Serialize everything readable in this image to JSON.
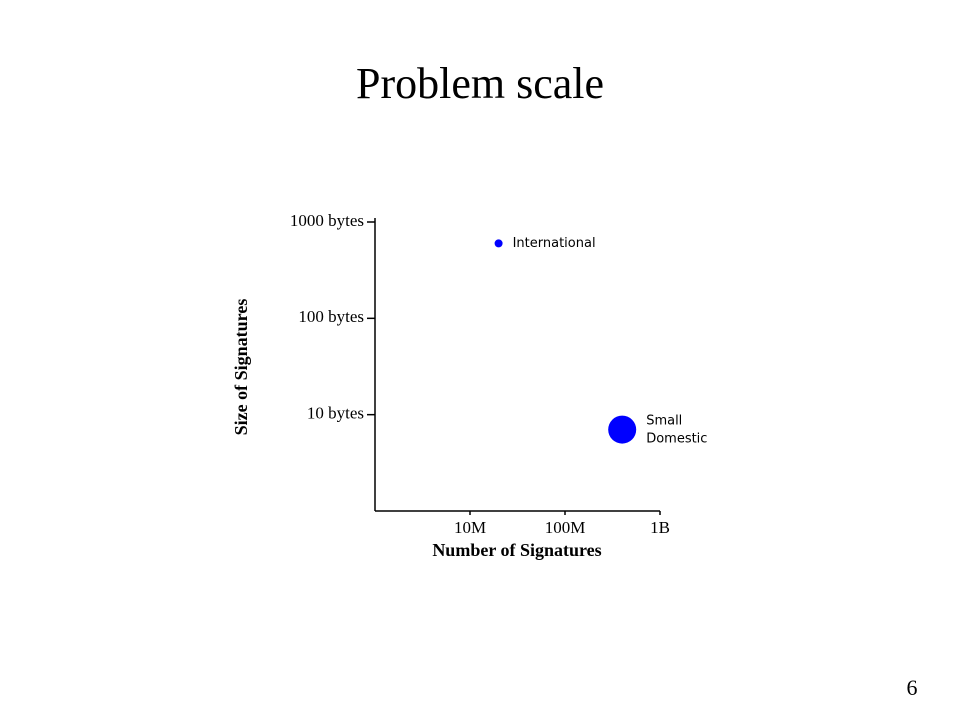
{
  "title": "Problem scale",
  "page_number": "6",
  "chart_data": {
    "type": "scatter",
    "x_label": "Number of Signatures",
    "y_label": "Size of Signatures",
    "xscale": "log",
    "yscale": "log",
    "xlim": [
      1000000,
      1000000000
    ],
    "ylim": [
      1,
      1000
    ],
    "xticks": [
      {
        "value": 10000000,
        "label": "10M"
      },
      {
        "value": 100000000,
        "label": "100M"
      },
      {
        "value": 1000000000,
        "label": "1B"
      }
    ],
    "yticks": [
      {
        "value": 10,
        "label": "10 bytes"
      },
      {
        "value": 100,
        "label": "100 bytes"
      },
      {
        "value": 1000,
        "label": "1000 bytes"
      }
    ],
    "series": [
      {
        "name": "International",
        "color": "#0000ff",
        "marker_size": 8,
        "x": [
          20000000
        ],
        "y": [
          600
        ]
      },
      {
        "name": "Small Domestic",
        "color": "#0000ff",
        "marker_size": 28,
        "x": [
          400000000
        ],
        "y": [
          7
        ]
      }
    ]
  }
}
